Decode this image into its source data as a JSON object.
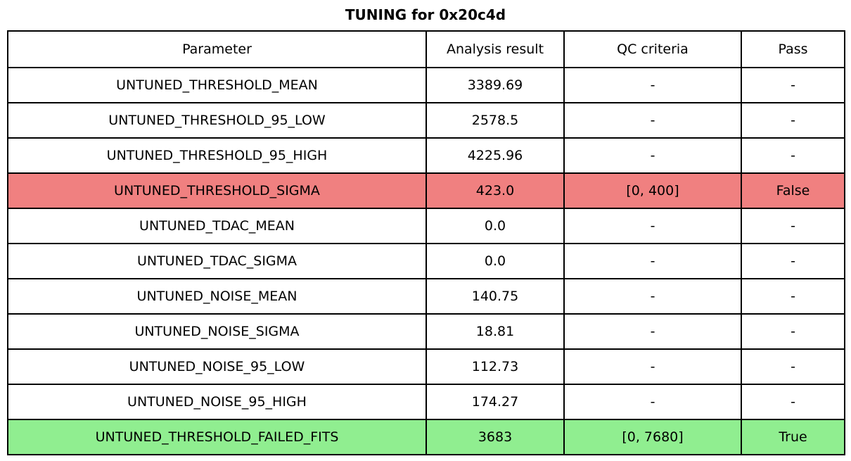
{
  "chart_data": {
    "type": "table",
    "title": "TUNING for 0x20c4d",
    "columns": [
      "Parameter",
      "Analysis result",
      "QC criteria",
      "Pass"
    ],
    "rows": [
      {
        "parameter": "UNTUNED_THRESHOLD_MEAN",
        "result": "3389.69",
        "qc": "-",
        "pass": "-",
        "status": "none"
      },
      {
        "parameter": "UNTUNED_THRESHOLD_95_LOW",
        "result": "2578.5",
        "qc": "-",
        "pass": "-",
        "status": "none"
      },
      {
        "parameter": "UNTUNED_THRESHOLD_95_HIGH",
        "result": "4225.96",
        "qc": "-",
        "pass": "-",
        "status": "none"
      },
      {
        "parameter": "UNTUNED_THRESHOLD_SIGMA",
        "result": "423.0",
        "qc": "[0, 400]",
        "pass": "False",
        "status": "fail"
      },
      {
        "parameter": "UNTUNED_TDAC_MEAN",
        "result": "0.0",
        "qc": "-",
        "pass": "-",
        "status": "none"
      },
      {
        "parameter": "UNTUNED_TDAC_SIGMA",
        "result": "0.0",
        "qc": "-",
        "pass": "-",
        "status": "none"
      },
      {
        "parameter": "UNTUNED_NOISE_MEAN",
        "result": "140.75",
        "qc": "-",
        "pass": "-",
        "status": "none"
      },
      {
        "parameter": "UNTUNED_NOISE_SIGMA",
        "result": "18.81",
        "qc": "-",
        "pass": "-",
        "status": "none"
      },
      {
        "parameter": "UNTUNED_NOISE_95_LOW",
        "result": "112.73",
        "qc": "-",
        "pass": "-",
        "status": "none"
      },
      {
        "parameter": "UNTUNED_NOISE_95_HIGH",
        "result": "174.27",
        "qc": "-",
        "pass": "-",
        "status": "none"
      },
      {
        "parameter": "UNTUNED_THRESHOLD_FAILED_FITS",
        "result": "3683",
        "qc": "[0, 7680]",
        "pass": "True",
        "status": "pass"
      }
    ],
    "layout_hints": {
      "grid": true,
      "highlight_fail_rows": [
        3
      ],
      "highlight_pass_rows": [
        10
      ]
    }
  },
  "colors": {
    "fail_row_bg": "#f08080",
    "pass_row_bg": "#90ee90",
    "row_bg": "#ffffff",
    "border": "#000000",
    "text": "#000000"
  }
}
